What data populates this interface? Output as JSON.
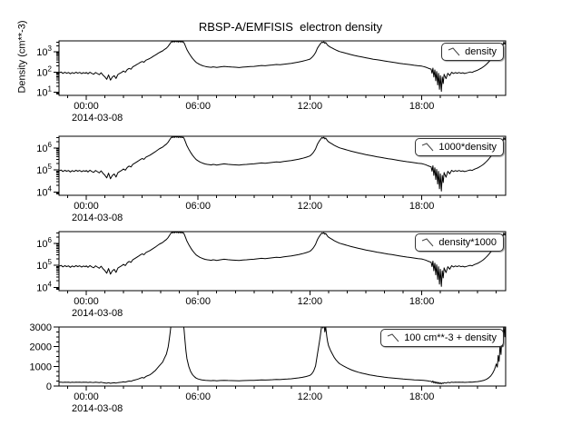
{
  "chart_data": {
    "type": "line",
    "title": "RBSP-A/EMFISIS  electron density",
    "ylabel": "Density (cm**-3)",
    "x_date_label": "2014-03-08",
    "x_range_hours": [
      -1.46,
      22.5
    ],
    "x_ticks": [
      {
        "t": 0,
        "label": "00:00"
      },
      {
        "t": 6,
        "label": "06:00"
      },
      {
        "t": 12,
        "label": "12:00"
      },
      {
        "t": 18,
        "label": "18:00"
      }
    ],
    "line_color": "#000000",
    "background": "#ffffff",
    "legend_position": "top-right",
    "grid": false,
    "panels": [
      {
        "legend": "density",
        "scale": "log",
        "multiply": 1,
        "add": 0,
        "ymin": 7,
        "ymax": 3500,
        "yticks": [
          {
            "base": "10",
            "exp": "1",
            "value": 10
          },
          {
            "base": "10",
            "exp": "2",
            "value": 100
          },
          {
            "base": "10",
            "exp": "3",
            "value": 1000
          }
        ]
      },
      {
        "legend": "1000*density",
        "scale": "log",
        "multiply": 1000,
        "add": 0,
        "ymin": 7000,
        "ymax": 3500000,
        "yticks": [
          {
            "base": "10",
            "exp": "4",
            "value": 10000
          },
          {
            "base": "10",
            "exp": "5",
            "value": 100000
          },
          {
            "base": "10",
            "exp": "6",
            "value": 1000000
          }
        ]
      },
      {
        "legend": "density*1000",
        "scale": "log",
        "multiply": 1000,
        "add": 0,
        "ymin": 7000,
        "ymax": 3500000,
        "yticks": [
          {
            "base": "10",
            "exp": "4",
            "value": 10000
          },
          {
            "base": "10",
            "exp": "5",
            "value": 100000
          },
          {
            "base": "10",
            "exp": "6",
            "value": 1000000
          }
        ]
      },
      {
        "legend": "100 cm**-3 + density",
        "scale": "linear",
        "multiply": 1,
        "add": 100,
        "ymin": 0,
        "ymax": 3000,
        "yticks": [
          {
            "label": "0",
            "value": 0
          },
          {
            "label": "1000",
            "value": 1000
          },
          {
            "label": "2000",
            "value": 2000
          },
          {
            "label": "3000",
            "value": 3000
          }
        ]
      }
    ],
    "series": {
      "name": "density",
      "units": "cm**-3",
      "points": [
        [
          -1.45,
          92
        ],
        [
          -1.35,
          100
        ],
        [
          -1.25,
          86
        ],
        [
          -1.15,
          97
        ],
        [
          -1.05,
          88
        ],
        [
          -0.95,
          95
        ],
        [
          -0.85,
          82
        ],
        [
          -0.75,
          94
        ],
        [
          -0.65,
          86
        ],
        [
          -0.55,
          98
        ],
        [
          -0.45,
          88
        ],
        [
          -0.35,
          96
        ],
        [
          -0.25,
          84
        ],
        [
          -0.15,
          93
        ],
        [
          -0.05,
          87
        ],
        [
          0,
          95
        ],
        [
          0.1,
          82
        ],
        [
          0.2,
          98
        ],
        [
          0.3,
          86
        ],
        [
          0.4,
          78
        ],
        [
          0.5,
          95
        ],
        [
          0.6,
          84
        ],
        [
          0.7,
          74
        ],
        [
          0.8,
          92
        ],
        [
          0.9,
          70
        ],
        [
          1,
          58
        ],
        [
          1.1,
          44
        ],
        [
          1.2,
          72
        ],
        [
          1.3,
          40
        ],
        [
          1.4,
          56
        ],
        [
          1.5,
          66
        ],
        [
          1.6,
          48
        ],
        [
          1.7,
          76
        ],
        [
          1.8,
          86
        ],
        [
          1.9,
          96
        ],
        [
          2,
          112
        ],
        [
          2.1,
          98
        ],
        [
          2.2,
          132
        ],
        [
          2.3,
          152
        ],
        [
          2.4,
          138
        ],
        [
          2.5,
          182
        ],
        [
          2.6,
          205
        ],
        [
          2.7,
          232
        ],
        [
          2.8,
          262
        ],
        [
          2.9,
          300
        ],
        [
          3,
          335
        ],
        [
          3.1,
          308
        ],
        [
          3.2,
          385
        ],
        [
          3.3,
          425
        ],
        [
          3.4,
          465
        ],
        [
          3.5,
          525
        ],
        [
          3.6,
          605
        ],
        [
          3.7,
          685
        ],
        [
          3.8,
          790
        ],
        [
          3.9,
          905
        ],
        [
          4,
          1010
        ],
        [
          4.1,
          1120
        ],
        [
          4.2,
          1320
        ],
        [
          4.3,
          1520
        ],
        [
          4.4,
          1900
        ],
        [
          4.45,
          2250
        ],
        [
          4.5,
          2600
        ],
        [
          4.55,
          3000
        ],
        [
          4.6,
          3250
        ],
        [
          4.65,
          3050
        ],
        [
          4.7,
          3350
        ],
        [
          4.75,
          3100
        ],
        [
          4.8,
          3400
        ],
        [
          4.85,
          3150
        ],
        [
          4.9,
          3300
        ],
        [
          4.95,
          3050
        ],
        [
          5,
          3350
        ],
        [
          5.05,
          3100
        ],
        [
          5.1,
          3250
        ],
        [
          5.15,
          3050
        ],
        [
          5.2,
          3150
        ],
        [
          5.25,
          2750
        ],
        [
          5.3,
          2200
        ],
        [
          5.35,
          1700
        ],
        [
          5.4,
          1300
        ],
        [
          5.5,
          900
        ],
        [
          5.6,
          640
        ],
        [
          5.7,
          480
        ],
        [
          5.8,
          375
        ],
        [
          5.9,
          300
        ],
        [
          6,
          262
        ],
        [
          6.1,
          234
        ],
        [
          6.2,
          214
        ],
        [
          6.3,
          198
        ],
        [
          6.4,
          188
        ],
        [
          6.5,
          181
        ],
        [
          6.6,
          175
        ],
        [
          6.7,
          171
        ],
        [
          6.8,
          181
        ],
        [
          6.9,
          175
        ],
        [
          7,
          169
        ],
        [
          7.2,
          181
        ],
        [
          7.4,
          191
        ],
        [
          7.6,
          183
        ],
        [
          7.8,
          177
        ],
        [
          8,
          173
        ],
        [
          8.2,
          167
        ],
        [
          8.4,
          175
        ],
        [
          8.6,
          181
        ],
        [
          8.8,
          187
        ],
        [
          9,
          191
        ],
        [
          9.2,
          201
        ],
        [
          9.4,
          211
        ],
        [
          9.6,
          205
        ],
        [
          9.8,
          215
        ],
        [
          10,
          225
        ],
        [
          10.2,
          237
        ],
        [
          10.4,
          229
        ],
        [
          10.6,
          245
        ],
        [
          10.8,
          257
        ],
        [
          11,
          271
        ],
        [
          11.2,
          291
        ],
        [
          11.4,
          314
        ],
        [
          11.6,
          344
        ],
        [
          11.8,
          384
        ],
        [
          12,
          438
        ],
        [
          12.1,
          520
        ],
        [
          12.2,
          660
        ],
        [
          12.3,
          920
        ],
        [
          12.4,
          1500
        ],
        [
          12.5,
          2100
        ],
        [
          12.55,
          2400
        ],
        [
          12.6,
          2750
        ],
        [
          12.65,
          3050
        ],
        [
          12.7,
          2850
        ],
        [
          12.75,
          3150
        ],
        [
          12.8,
          2650
        ],
        [
          12.85,
          2900
        ],
        [
          12.9,
          2450
        ],
        [
          12.95,
          2150
        ],
        [
          13,
          1950
        ],
        [
          13.1,
          1720
        ],
        [
          13.2,
          1540
        ],
        [
          13.3,
          1360
        ],
        [
          13.4,
          1230
        ],
        [
          13.5,
          1120
        ],
        [
          13.6,
          1030
        ],
        [
          13.8,
          920
        ],
        [
          14,
          820
        ],
        [
          14.2,
          730
        ],
        [
          14.4,
          660
        ],
        [
          14.6,
          600
        ],
        [
          14.8,
          552
        ],
        [
          15,
          508
        ],
        [
          15.2,
          468
        ],
        [
          15.4,
          434
        ],
        [
          15.6,
          404
        ],
        [
          15.8,
          380
        ],
        [
          16,
          354
        ],
        [
          16.2,
          331
        ],
        [
          16.4,
          311
        ],
        [
          16.6,
          291
        ],
        [
          16.8,
          272
        ],
        [
          17,
          256
        ],
        [
          17.2,
          241
        ],
        [
          17.4,
          229
        ],
        [
          17.6,
          216
        ],
        [
          17.8,
          205
        ],
        [
          18,
          196
        ],
        [
          18.1,
          186
        ],
        [
          18.2,
          175
        ],
        [
          18.3,
          161
        ],
        [
          18.4,
          149
        ],
        [
          18.5,
          139
        ],
        [
          18.55,
          88
        ],
        [
          18.6,
          157
        ],
        [
          18.65,
          57
        ],
        [
          18.7,
          127
        ],
        [
          18.75,
          37
        ],
        [
          18.8,
          107
        ],
        [
          18.85,
          23
        ],
        [
          18.9,
          87
        ],
        [
          18.95,
          14
        ],
        [
          19,
          67
        ],
        [
          19.05,
          11
        ],
        [
          19.1,
          57
        ],
        [
          19.15,
          27
        ],
        [
          19.2,
          77
        ],
        [
          19.3,
          47
        ],
        [
          19.4,
          87
        ],
        [
          19.5,
          67
        ],
        [
          19.6,
          97
        ],
        [
          19.7,
          85
        ],
        [
          19.8,
          94
        ],
        [
          19.9,
          88
        ],
        [
          20,
          95
        ],
        [
          20.1,
          87
        ],
        [
          20.2,
          92
        ],
        [
          20.3,
          85
        ],
        [
          20.4,
          90
        ],
        [
          20.5,
          95
        ],
        [
          20.6,
          101
        ],
        [
          20.7,
          95
        ],
        [
          20.8,
          107
        ],
        [
          20.9,
          115
        ],
        [
          21,
          125
        ],
        [
          21.1,
          139
        ],
        [
          21.2,
          157
        ],
        [
          21.3,
          181
        ],
        [
          21.4,
          214
        ],
        [
          21.5,
          261
        ],
        [
          21.6,
          324
        ],
        [
          21.7,
          414
        ],
        [
          21.8,
          544
        ],
        [
          21.9,
          738
        ],
        [
          22,
          1020
        ],
        [
          22.05,
          860
        ],
        [
          22.1,
          1450
        ],
        [
          22.15,
          1150
        ],
        [
          22.2,
          1950
        ],
        [
          22.25,
          1500
        ],
        [
          22.3,
          2600
        ],
        [
          22.35,
          1900
        ],
        [
          22.4,
          3050
        ],
        [
          22.45,
          2400
        ],
        [
          22.5,
          3200
        ]
      ]
    }
  }
}
